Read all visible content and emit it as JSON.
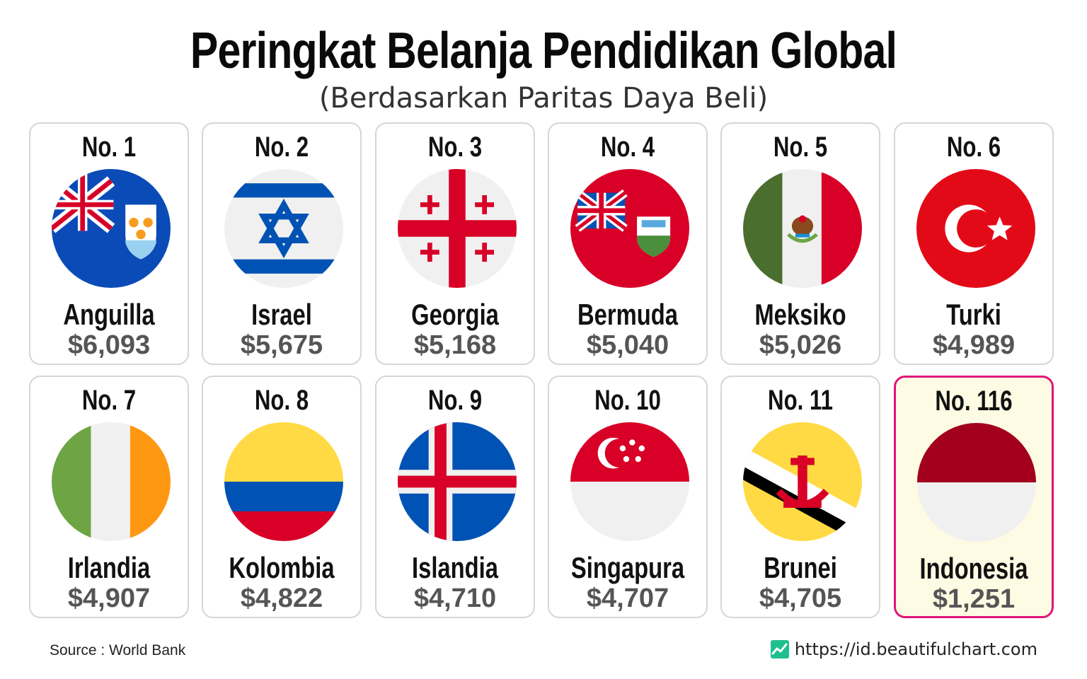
{
  "title": "Peringkat Belanja Pendidikan Global",
  "subtitle": "(Berdasarkan Paritas Daya Beli)",
  "source": "Source : World Bank",
  "website": "https://id.beautifulchart.com",
  "colors": {
    "highlight_border": "#e0147a",
    "highlight_bg": "#fdfbe3",
    "card_border": "#d6d6d6",
    "value_text": "#555555"
  },
  "chart_data": {
    "type": "table",
    "title": "Peringkat Belanja Pendidikan Global",
    "subtitle": "(Berdasarkan Paritas Daya Beli)",
    "columns": [
      "rank",
      "country",
      "value"
    ],
    "rows": [
      {
        "rank": "No. 1",
        "country": "Anguilla",
        "value": "$6,093",
        "amount": 6093,
        "flag": "anguilla-flag-icon"
      },
      {
        "rank": "No. 2",
        "country": "Israel",
        "value": "$5,675",
        "amount": 5675,
        "flag": "israel-flag-icon"
      },
      {
        "rank": "No. 3",
        "country": "Georgia",
        "value": "$5,168",
        "amount": 5168,
        "flag": "georgia-flag-icon"
      },
      {
        "rank": "No. 4",
        "country": "Bermuda",
        "value": "$5,040",
        "amount": 5040,
        "flag": "bermuda-flag-icon"
      },
      {
        "rank": "No. 5",
        "country": "Meksiko",
        "value": "$5,026",
        "amount": 5026,
        "flag": "mexico-flag-icon"
      },
      {
        "rank": "No. 6",
        "country": "Turki",
        "value": "$4,989",
        "amount": 4989,
        "flag": "turkey-flag-icon"
      },
      {
        "rank": "No. 7",
        "country": "Irlandia",
        "value": "$4,907",
        "amount": 4907,
        "flag": "ireland-flag-icon"
      },
      {
        "rank": "No. 8",
        "country": "Kolombia",
        "value": "$4,822",
        "amount": 4822,
        "flag": "colombia-flag-icon"
      },
      {
        "rank": "No. 9",
        "country": "Islandia",
        "value": "$4,710",
        "amount": 4710,
        "flag": "iceland-flag-icon"
      },
      {
        "rank": "No. 10",
        "country": "Singapura",
        "value": "$4,707",
        "amount": 4707,
        "flag": "singapore-flag-icon"
      },
      {
        "rank": "No. 11",
        "country": "Brunei",
        "value": "$4,705",
        "amount": 4705,
        "flag": "brunei-flag-icon"
      },
      {
        "rank": "No. 116",
        "country": "Indonesia",
        "value": "$1,251",
        "amount": 1251,
        "flag": "indonesia-flag-icon",
        "highlighted": true
      }
    ]
  }
}
